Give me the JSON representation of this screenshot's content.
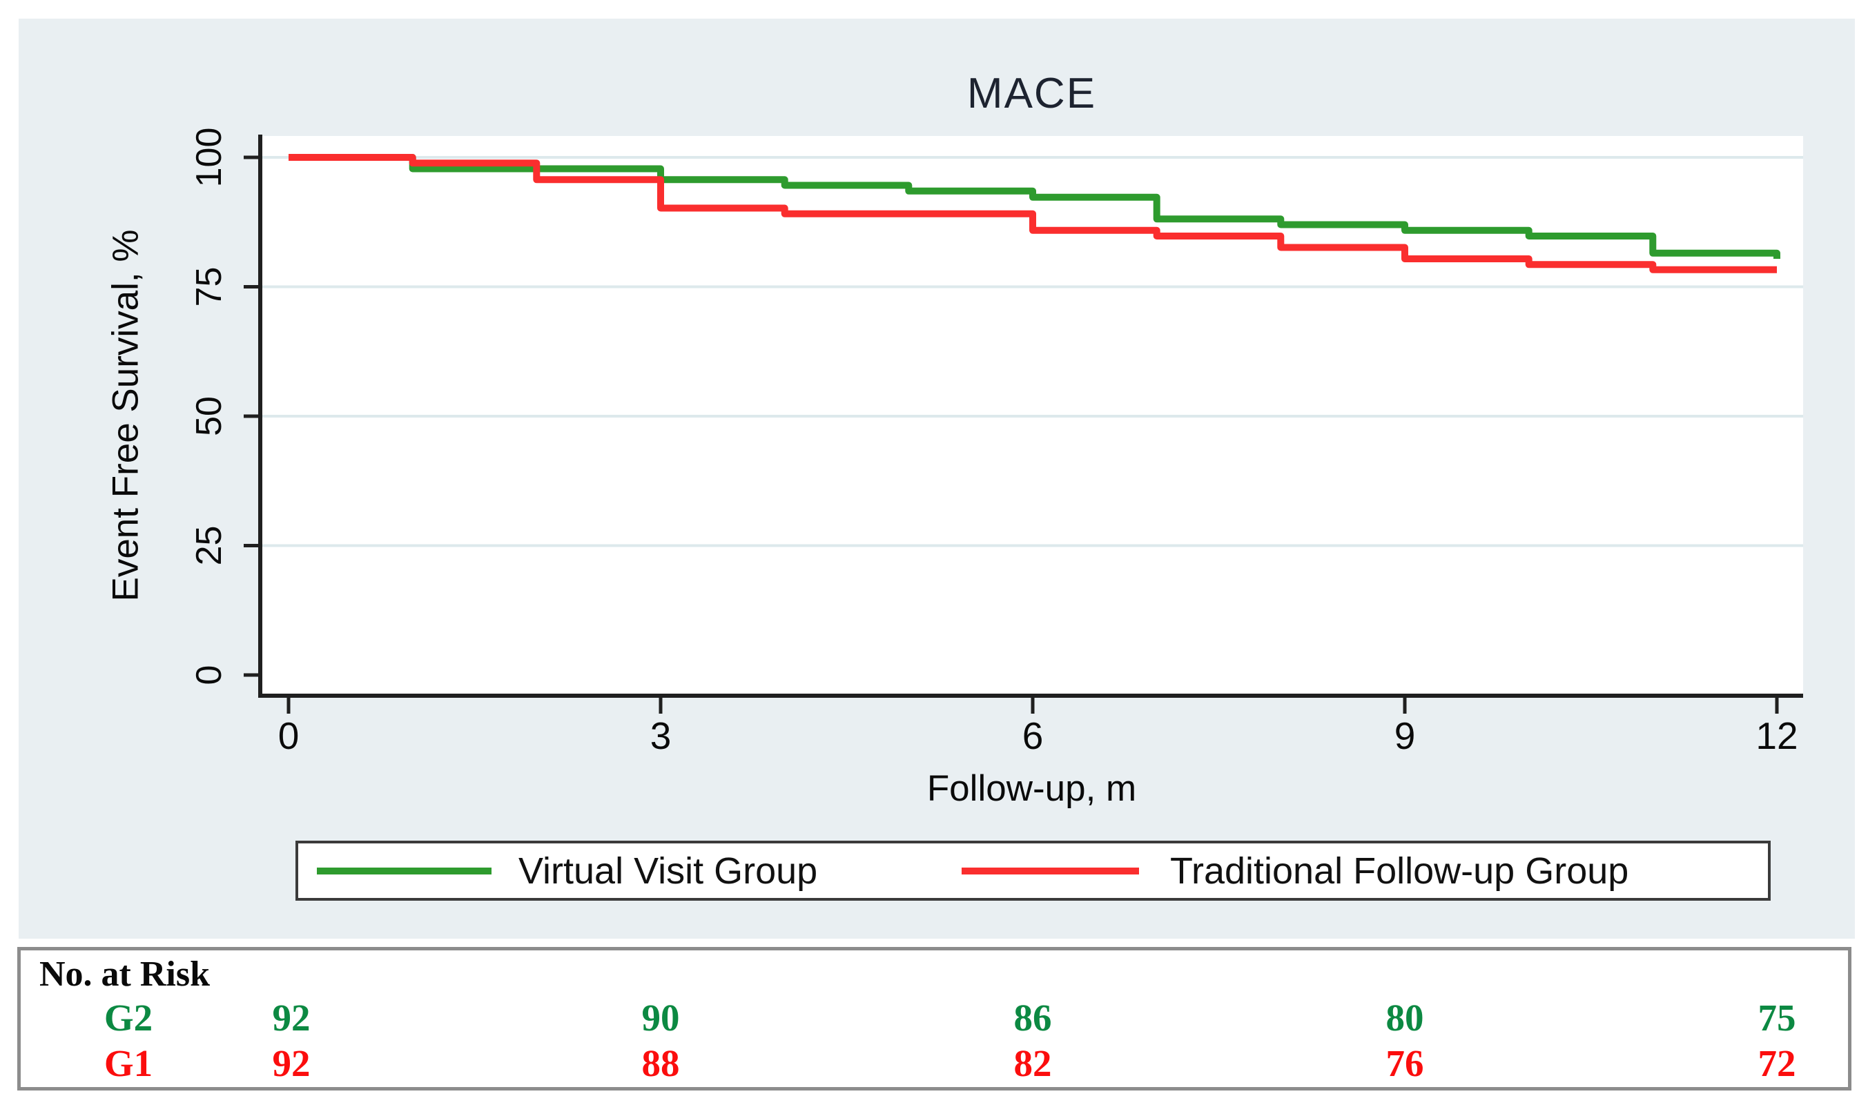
{
  "figure": {
    "title": "MACE",
    "x_axis": {
      "label": "Follow-up, m",
      "tick_labels": [
        "0",
        "3",
        "6",
        "9",
        "12"
      ],
      "tick_values": [
        0,
        3,
        6,
        9,
        12
      ],
      "range": [
        0,
        12
      ]
    },
    "y_axis": {
      "label": "Event Free Survival, %",
      "tick_labels": [
        "0",
        "25",
        "50",
        "75",
        "100"
      ],
      "tick_values": [
        0,
        25,
        50,
        75,
        100
      ],
      "gridline_values": [
        25,
        50,
        75,
        100
      ],
      "range": [
        0,
        100
      ]
    },
    "colors": {
      "canvas_background": "#e9eff2",
      "plot_background": "#ffffff",
      "gridline": "#dde9ec",
      "axis": "#1f1f1f",
      "title_text": "#1d2330",
      "tick_text": "#0a0a0a"
    }
  },
  "legend": {
    "entries": [
      {
        "label": "Virtual Visit Group",
        "color": "#2e9b2e"
      },
      {
        "label": "Traditional Follow-up Group",
        "color": "#fa2e2e"
      }
    ]
  },
  "risk_table": {
    "header": "No. at Risk",
    "time_points": [
      0,
      3,
      6,
      9,
      12
    ],
    "rows": [
      {
        "label": "G2",
        "color": "#0c8942",
        "counts": [
          "92",
          "90",
          "86",
          "80",
          "75"
        ]
      },
      {
        "label": "G1",
        "color": "#fb0d0d",
        "counts": [
          "92",
          "88",
          "82",
          "76",
          "72"
        ]
      }
    ]
  },
  "chart_data": {
    "type": "line",
    "subtype": "kaplan-meier-step",
    "title": "MACE",
    "xlabel": "Follow-up, m",
    "ylabel": "Event Free Survival, %",
    "xlim": [
      0,
      12
    ],
    "ylim": [
      0,
      100
    ],
    "x_ticks": [
      0,
      3,
      6,
      9,
      12
    ],
    "y_ticks": [
      0,
      25,
      50,
      75,
      100
    ],
    "grid": "horizontal",
    "legend_position": "bottom",
    "series": [
      {
        "name": "Virtual Visit Group",
        "color": "#2e9b2e",
        "step_x": [
          0,
          1,
          3,
          4,
          5,
          6,
          7,
          8,
          9,
          10,
          11,
          12
        ],
        "step_y": [
          100,
          97.8,
          95.7,
          94.6,
          93.5,
          92.3,
          88.1,
          87.0,
          85.9,
          84.8,
          81.5,
          80.4
        ]
      },
      {
        "name": "Traditional Follow-up Group",
        "color": "#fa2e2e",
        "step_x": [
          0,
          1,
          2,
          3,
          4,
          6,
          7,
          8,
          9,
          10,
          11
        ],
        "step_y": [
          100,
          98.9,
          95.7,
          90.2,
          89.1,
          85.9,
          84.8,
          82.6,
          80.4,
          79.3,
          78.3
        ]
      }
    ]
  }
}
